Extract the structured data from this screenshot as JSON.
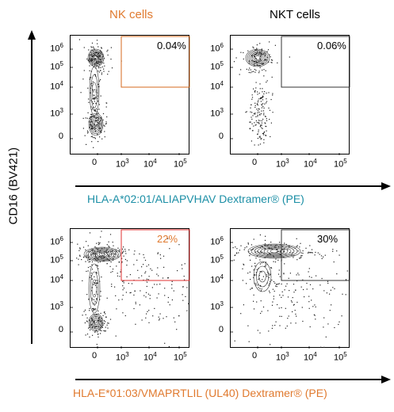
{
  "chart_data": [
    {
      "type": "scatter",
      "panel": "top-left",
      "title": "NK cells",
      "gate_percent": "0.04%",
      "gate_color": "#d4691e",
      "xlabel": "HLA-A*02:01/ALIAPVHAV  Dextramer® (PE)",
      "ylabel": "CD16 (BV421)",
      "x_ticks": [
        "0",
        "10^3",
        "10^4",
        "10^5"
      ],
      "y_ticks": [
        "0",
        "10^3",
        "10^4",
        "10^5",
        "10^6"
      ],
      "population": "CD16+ dextramer-negative and CD16- subsets"
    },
    {
      "type": "scatter",
      "panel": "top-right",
      "title": "NKT cells",
      "gate_percent": "0.06%",
      "gate_color": "#333333",
      "xlabel": "HLA-A*02:01/ALIAPVHAV  Dextramer® (PE)",
      "ylabel": "CD16 (BV421)",
      "x_ticks": [
        "0",
        "10^3",
        "10^4",
        "10^5"
      ],
      "y_ticks": [
        "0",
        "10^3",
        "10^4",
        "10^5",
        "10^6"
      ]
    },
    {
      "type": "scatter",
      "panel": "bottom-left",
      "gate_percent": "22%",
      "gate_color": "#e03030",
      "xlabel": "HLA-E*01:03/VMAPRTLIL (UL40) Dextramer® (PE)",
      "ylabel": "CD16 (BV421)",
      "x_ticks": [
        "0",
        "10^3",
        "10^4",
        "10^5"
      ],
      "y_ticks": [
        "0",
        "10^3",
        "10^4",
        "10^5",
        "10^6"
      ]
    },
    {
      "type": "scatter",
      "panel": "bottom-right",
      "gate_percent": "30%",
      "gate_color": "#333333",
      "xlabel": "HLA-E*01:03/VMAPRTLIL (UL40) Dextramer® (PE)",
      "ylabel": "CD16 (BV421)",
      "x_ticks": [
        "0",
        "10^3",
        "10^4",
        "10^5"
      ],
      "y_ticks": [
        "0",
        "10^3",
        "10^4",
        "10^5",
        "10^6"
      ]
    }
  ],
  "labels": {
    "nk_title": "NK cells",
    "nkt_title": "NKT cells",
    "y_axis": "CD16 (BV421)",
    "x_axis_top": "HLA-A*02:01/ALIAPVHAV  Dextramer® (PE)",
    "x_axis_bottom": "HLA-E*01:03/VMAPRTLIL (UL40) Dextramer® (PE)",
    "tick_0": "0",
    "tick_base": "10"
  },
  "colors": {
    "orange": "#e07a2f",
    "teal": "#1c8fa6",
    "red_gate": "#e03030",
    "axis": "#000000"
  }
}
